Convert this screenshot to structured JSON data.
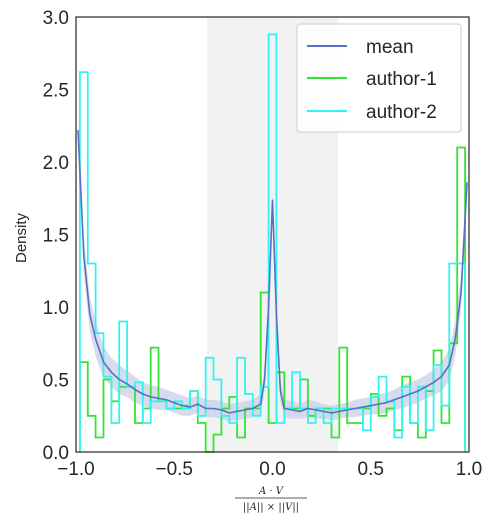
{
  "chart_data": {
    "type": "line",
    "xlabel_numerator": "A · V",
    "xlabel_denominator": "||A|| × ||V||",
    "ylabel": "Density",
    "xlim": [
      -1.0,
      1.0
    ],
    "ylim": [
      0.0,
      3.0
    ],
    "x_ticks": [
      -1.0,
      -0.5,
      0.0,
      0.5,
      1.0
    ],
    "x_tick_labels": [
      "−1.0",
      "−0.5",
      "0.0",
      "0.5",
      "1.0"
    ],
    "y_ticks": [
      0.0,
      0.5,
      1.0,
      1.5,
      2.0,
      2.5,
      3.0
    ],
    "y_tick_labels": [
      "0.0",
      "0.5",
      "1.0",
      "1.5",
      "2.0",
      "2.5",
      "3.0"
    ],
    "grid": false,
    "legend_position": "top-right",
    "shaded_region": {
      "x0": -0.333,
      "x1": 0.333,
      "color": "#f2f2f2"
    },
    "colors": {
      "mean": "#5a6fc1",
      "mean_band": "#c9cfe8",
      "author-1": "#33e533",
      "author-2": "#33f2f2"
    },
    "legend": [
      "mean",
      "author-1",
      "author-2"
    ],
    "mean": {
      "name": "mean",
      "x": [
        -0.99,
        -0.96,
        -0.93,
        -0.9,
        -0.86,
        -0.82,
        -0.78,
        -0.74,
        -0.7,
        -0.66,
        -0.62,
        -0.58,
        -0.54,
        -0.5,
        -0.46,
        -0.42,
        -0.38,
        -0.34,
        -0.3,
        -0.26,
        -0.22,
        -0.18,
        -0.14,
        -0.1,
        -0.06,
        -0.04,
        -0.02,
        0.0,
        0.02,
        0.04,
        0.06,
        0.1,
        0.14,
        0.18,
        0.22,
        0.26,
        0.3,
        0.34,
        0.38,
        0.42,
        0.46,
        0.5,
        0.54,
        0.58,
        0.62,
        0.66,
        0.7,
        0.74,
        0.78,
        0.82,
        0.86,
        0.9,
        0.93,
        0.96,
        0.99
      ],
      "y": [
        2.22,
        1.35,
        0.95,
        0.78,
        0.62,
        0.55,
        0.5,
        0.47,
        0.43,
        0.4,
        0.38,
        0.37,
        0.36,
        0.34,
        0.32,
        0.31,
        0.33,
        0.3,
        0.3,
        0.29,
        0.27,
        0.28,
        0.29,
        0.3,
        0.33,
        0.5,
        1.0,
        1.74,
        0.95,
        0.42,
        0.3,
        0.29,
        0.28,
        0.3,
        0.29,
        0.28,
        0.27,
        0.28,
        0.29,
        0.3,
        0.31,
        0.32,
        0.33,
        0.34,
        0.36,
        0.38,
        0.4,
        0.42,
        0.45,
        0.48,
        0.52,
        0.6,
        0.78,
        1.1,
        1.86
      ],
      "band_halfwidth": [
        0.08,
        0.12,
        0.12,
        0.12,
        0.11,
        0.1,
        0.1,
        0.09,
        0.09,
        0.08,
        0.08,
        0.08,
        0.07,
        0.07,
        0.07,
        0.06,
        0.06,
        0.06,
        0.06,
        0.06,
        0.06,
        0.06,
        0.06,
        0.06,
        0.07,
        0.08,
        0.1,
        0.05,
        0.1,
        0.08,
        0.06,
        0.06,
        0.05,
        0.06,
        0.06,
        0.05,
        0.05,
        0.05,
        0.05,
        0.06,
        0.06,
        0.06,
        0.07,
        0.07,
        0.07,
        0.08,
        0.08,
        0.08,
        0.08,
        0.09,
        0.1,
        0.11,
        0.12,
        0.12,
        0.1
      ]
    },
    "author_1": {
      "name": "author-1",
      "edges": [
        -0.98,
        -0.94,
        -0.9,
        -0.86,
        -0.82,
        -0.78,
        -0.74,
        -0.7,
        -0.66,
        -0.62,
        -0.58,
        -0.54,
        -0.5,
        -0.46,
        -0.42,
        -0.38,
        -0.34,
        -0.3,
        -0.26,
        -0.22,
        -0.18,
        -0.14,
        -0.1,
        -0.06,
        -0.02,
        0.02,
        0.06,
        0.1,
        0.14,
        0.18,
        0.22,
        0.26,
        0.3,
        0.34,
        0.38,
        0.42,
        0.46,
        0.5,
        0.54,
        0.58,
        0.62,
        0.66,
        0.7,
        0.74,
        0.78,
        0.82,
        0.86,
        0.9,
        0.94,
        0.98
      ],
      "values": [
        0.62,
        0.25,
        0.1,
        0.5,
        0.35,
        0.45,
        0.45,
        0.2,
        0.3,
        0.72,
        0.35,
        0.3,
        0.3,
        0.32,
        0.42,
        0.2,
        0.0,
        0.12,
        0.3,
        0.38,
        0.1,
        0.3,
        0.3,
        1.1,
        0.2,
        0.55,
        0.3,
        0.3,
        0.5,
        0.25,
        0.3,
        0.3,
        0.1,
        0.72,
        0.2,
        0.2,
        0.3,
        0.4,
        0.25,
        0.3,
        0.15,
        0.52,
        0.2,
        0.1,
        0.42,
        0.7,
        0.2,
        0.75,
        2.1
      ]
    },
    "author_2": {
      "name": "author-2",
      "edges": [
        -0.98,
        -0.94,
        -0.9,
        -0.86,
        -0.82,
        -0.78,
        -0.74,
        -0.7,
        -0.66,
        -0.62,
        -0.58,
        -0.54,
        -0.5,
        -0.46,
        -0.42,
        -0.38,
        -0.34,
        -0.3,
        -0.26,
        -0.22,
        -0.18,
        -0.14,
        -0.1,
        -0.06,
        -0.02,
        0.02,
        0.06,
        0.1,
        0.14,
        0.18,
        0.22,
        0.26,
        0.3,
        0.34,
        0.38,
        0.42,
        0.46,
        0.5,
        0.54,
        0.58,
        0.62,
        0.66,
        0.7,
        0.74,
        0.78,
        0.82,
        0.86,
        0.9,
        0.94,
        0.98
      ],
      "values": [
        2.62,
        1.3,
        0.82,
        0.52,
        0.2,
        0.9,
        0.45,
        0.48,
        0.2,
        0.35,
        0.35,
        0.3,
        0.35,
        0.3,
        0.42,
        0.25,
        0.65,
        0.5,
        0.25,
        0.2,
        0.65,
        0.4,
        0.25,
        0.45,
        2.88,
        0.2,
        0.3,
        0.55,
        0.3,
        0.2,
        0.3,
        0.2,
        0.3,
        0.3,
        0.3,
        0.3,
        0.15,
        0.38,
        0.52,
        0.35,
        0.1,
        0.45,
        0.2,
        0.45,
        0.15,
        0.6,
        0.32,
        1.3,
        1.3
      ]
    }
  }
}
